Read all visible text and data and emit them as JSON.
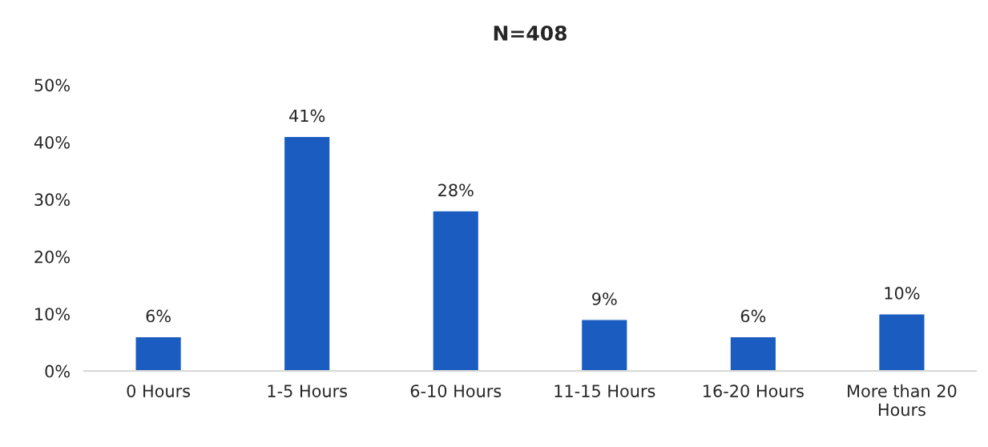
{
  "chart_data": {
    "type": "bar",
    "title": "N=408",
    "categories": [
      "0 Hours",
      "1-5 Hours",
      "6-10 Hours",
      "11-15 Hours",
      "16-20 Hours",
      "More than 20\nHours"
    ],
    "values": [
      6,
      41,
      28,
      9,
      6,
      10
    ],
    "value_labels": [
      "6%",
      "41%",
      "28%",
      "9%",
      "6%",
      "10%"
    ],
    "color": "#1a5cbf",
    "ylim": [
      0,
      50
    ],
    "yticks": [
      {
        "value": 0,
        "label": "0%"
      },
      {
        "value": 10,
        "label": "10%"
      },
      {
        "value": 20,
        "label": "20%"
      },
      {
        "value": 30,
        "label": "30%"
      },
      {
        "value": 40,
        "label": "40%"
      },
      {
        "value": 50,
        "label": "50%"
      }
    ],
    "grid": false,
    "legend": false
  }
}
